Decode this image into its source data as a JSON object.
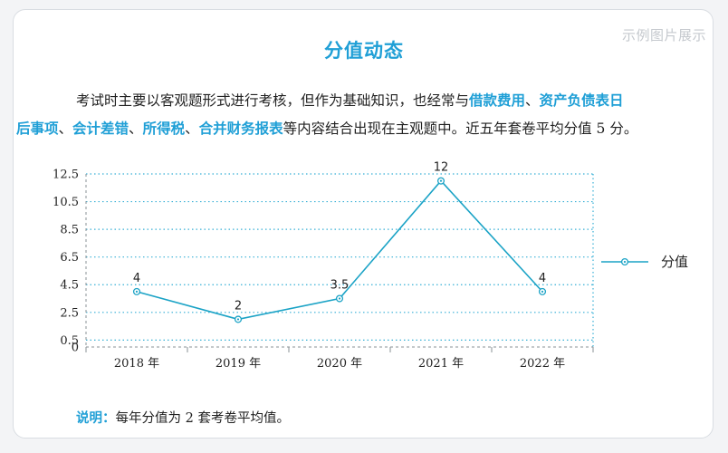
{
  "watermark": "示例图片展示",
  "title": "分值动态",
  "intro": {
    "seg1": "考试时主要以客观题形式进行考核，但作为基础知识，也经常与",
    "hl1": "借款费用",
    "seg2": "、",
    "hl2": "资产负债表日",
    "hl3": "后事项",
    "seg3": "、",
    "hl4": "会计差错",
    "seg4": "、",
    "hl5": "所得税",
    "seg5": "、",
    "hl6": "合并财务报表",
    "seg6": "等内容结合出现在主观题中。近五年套卷平均分值 5 分。"
  },
  "note": {
    "label": "说明：",
    "text": "每年分值为 2 套考卷平均值。"
  },
  "colors": {
    "accent": "#1f9fd6",
    "line": "#1ba3c6",
    "grid": "#39b0d6"
  },
  "chart_data": {
    "type": "line",
    "categories": [
      "2018 年",
      "2019 年",
      "2020 年",
      "2021 年",
      "2022 年"
    ],
    "series": [
      {
        "name": "分值",
        "values": [
          4,
          2,
          3.5,
          12,
          4
        ],
        "labels": [
          "4",
          "2",
          "3.5",
          "12",
          "4"
        ]
      }
    ],
    "y_ticks": [
      0,
      0.5,
      2.5,
      4.5,
      6.5,
      8.5,
      10.5,
      12.5
    ],
    "y_tick_labels": [
      "0",
      "0.5",
      "2.5",
      "4.5",
      "6.5",
      "8.5",
      "10.5",
      "12.5"
    ],
    "ylim": [
      0,
      12.5
    ],
    "grid": true,
    "legend": "right",
    "marker": "circle-dot"
  }
}
